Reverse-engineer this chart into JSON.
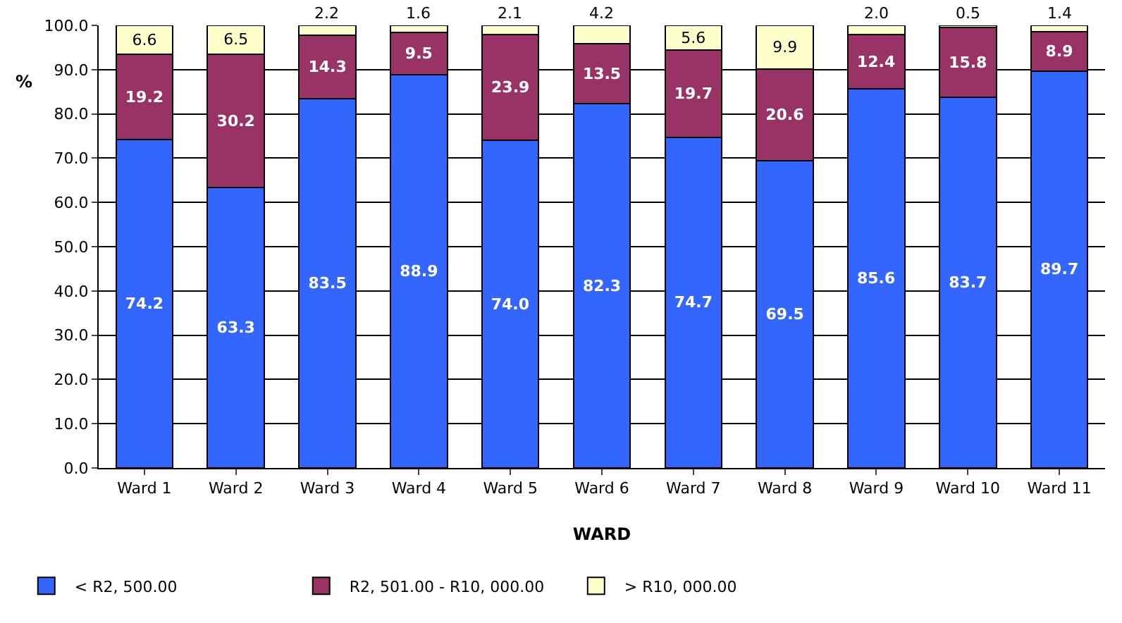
{
  "chart_data": {
    "type": "bar",
    "stacked": true,
    "xlabel": "WARD",
    "ylabel": "%",
    "categories": [
      "Ward 1",
      "Ward 2",
      "Ward 3",
      "Ward 4",
      "Ward 5",
      "Ward 6",
      "Ward 7",
      "Ward 8",
      "Ward 9",
      "Ward 10",
      "Ward 11"
    ],
    "series": [
      {
        "name": "< R2, 500.00",
        "color": "#3366ff",
        "values": [
          74.2,
          63.3,
          83.5,
          88.9,
          74.0,
          82.3,
          74.7,
          69.5,
          85.6,
          83.7,
          89.7
        ],
        "value_labels": [
          "74.2",
          "63.3",
          "83.5",
          "88.9",
          "74.0",
          "82.3",
          "74.7",
          "69.5",
          "85.6",
          "83.7",
          "89.7"
        ]
      },
      {
        "name": "R2, 501.00 - R10, 000.00",
        "color": "#993366",
        "values": [
          19.2,
          30.2,
          14.3,
          9.5,
          23.9,
          13.5,
          19.7,
          20.6,
          12.4,
          15.8,
          8.9
        ],
        "value_labels": [
          "19.2",
          "30.2",
          "14.3",
          "9.5",
          "23.9",
          "13.5",
          "19.7",
          "20.6",
          "12.4",
          "15.8",
          "8.9"
        ]
      },
      {
        "name": "> R10, 000.00",
        "color": "#ffffcc",
        "values": [
          6.6,
          6.5,
          2.2,
          1.6,
          2.1,
          4.2,
          5.6,
          9.9,
          2.0,
          0.5,
          1.4
        ],
        "value_labels": [
          "6.6",
          "6.5",
          "2.2",
          "1.6",
          "2.1",
          "4.2",
          "5.6",
          "9.9",
          "2.0",
          "0.5",
          "1.4"
        ]
      }
    ],
    "ylim": [
      0,
      100
    ],
    "yticks": [
      {
        "value": 0,
        "label": "0.0"
      },
      {
        "value": 10,
        "label": "10.0"
      },
      {
        "value": 20,
        "label": "20.0"
      },
      {
        "value": 30,
        "label": "30.0"
      },
      {
        "value": 40,
        "label": "40.0"
      },
      {
        "value": 50,
        "label": "50.0"
      },
      {
        "value": 60,
        "label": "60.0"
      },
      {
        "value": 70,
        "label": "70.0"
      },
      {
        "value": 80,
        "label": "80.0"
      },
      {
        "value": 90,
        "label": "90.0"
      },
      {
        "value": 100,
        "label": "100.0"
      }
    ],
    "grid": "y",
    "legend": "bottom left"
  }
}
